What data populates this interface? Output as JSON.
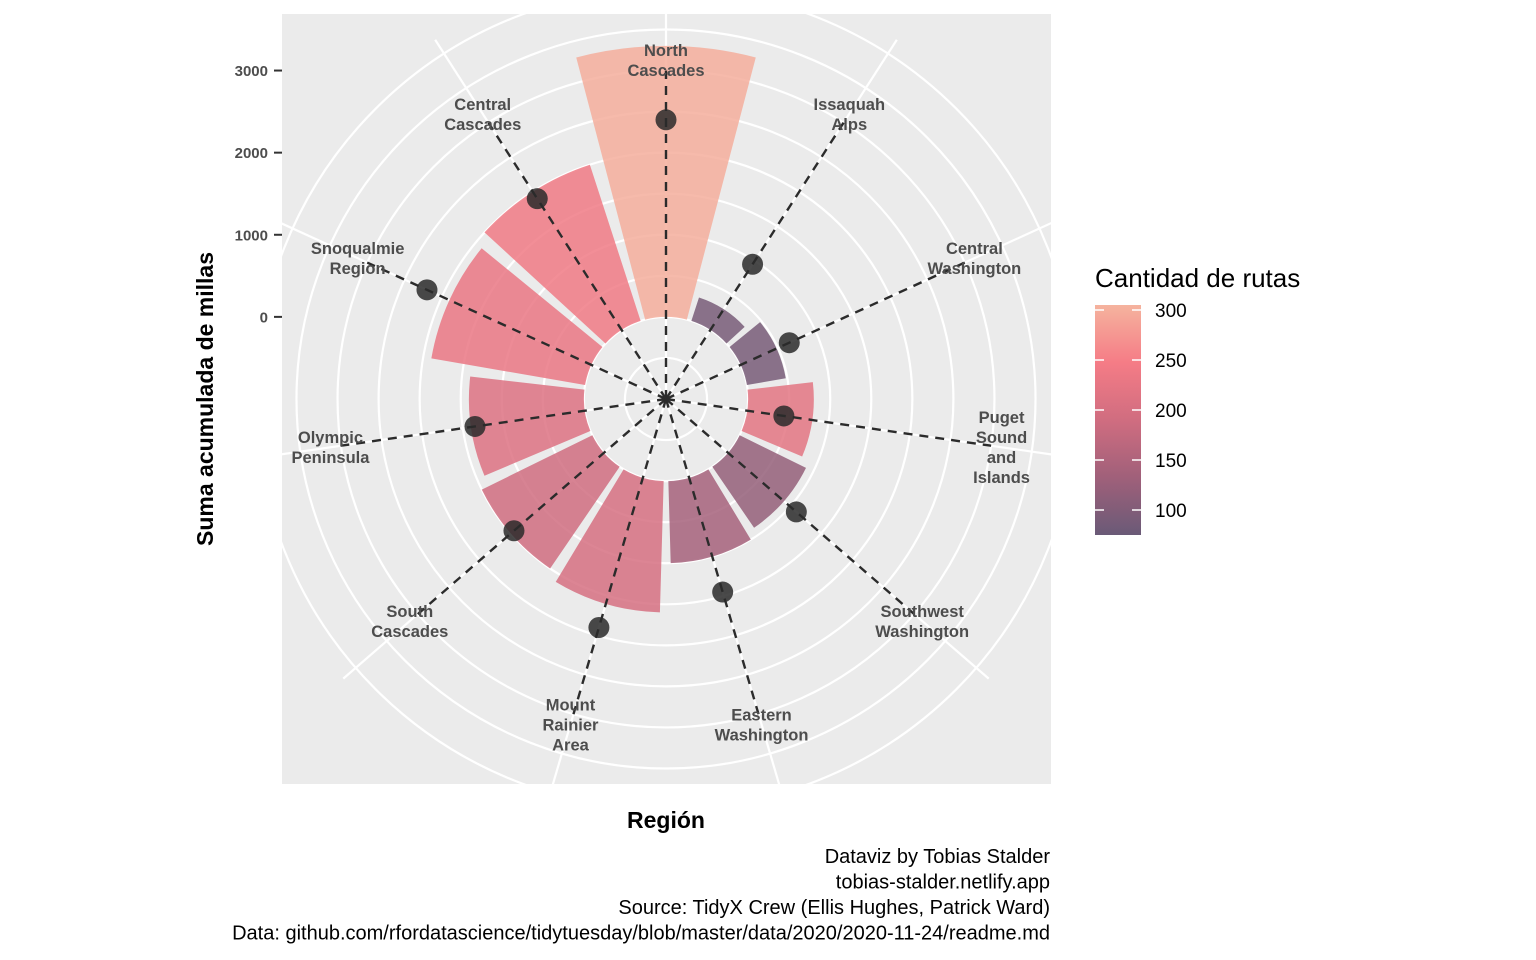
{
  "chart_data": {
    "type": "bar",
    "coord": "polar",
    "xlabel": "Región",
    "ylabel": "Suma acumulada de millas",
    "categories": [
      "North Cascades",
      "Issaquah Alps",
      "Central Washington",
      "Puget Sound and Islands",
      "Southwest Washington",
      "Eastern Washington",
      "Mount Rainier Area",
      "South Cascades",
      "Olympic Peninsula",
      "Snoqualmie Region",
      "Central Cascades"
    ],
    "category_label_lines": [
      [
        "North",
        "Cascades"
      ],
      [
        "Issaquah",
        "Alps"
      ],
      [
        "Central",
        "Washington"
      ],
      [
        "Puget",
        "Sound",
        "and",
        "Islands"
      ],
      [
        "Southwest",
        "Washington"
      ],
      [
        "Eastern",
        "Washington"
      ],
      [
        "Mount",
        "Rainier",
        "Area"
      ],
      [
        "South",
        "Cascades"
      ],
      [
        "Olympic",
        "Peninsula"
      ],
      [
        "Snoqualmie",
        "Region"
      ],
      [
        "Central",
        "Cascades"
      ]
    ],
    "series": [
      {
        "values": [
          3300,
          300,
          480,
          800,
          900,
          1000,
          1600,
          1500,
          1400,
          1900,
          2000
        ]
      }
    ],
    "route_counts": [
      300,
      90,
      90,
      220,
      120,
      140,
      200,
      190,
      210,
      230,
      240
    ],
    "point_values": [
      2400,
      950,
      650,
      450,
      1100,
      1450,
      1900,
      1450,
      1350,
      2200,
      1900
    ],
    "guide_values": [
      3000,
      3000,
      3000,
      3000,
      3000,
      3000,
      3000,
      3000,
      3000,
      3000,
      3000
    ],
    "yticks": [
      0,
      1000,
      2000,
      3000
    ],
    "ytick_labels": [
      "0",
      "1000",
      "2000",
      "3000"
    ],
    "ylim": [
      -1000,
      4200
    ],
    "legend": {
      "title": "Cantidad de rutas",
      "type": "colorbar",
      "range": [
        75,
        305
      ],
      "ticks": [
        100,
        150,
        200,
        250,
        300
      ],
      "tick_labels": [
        "100",
        "150",
        "200",
        "250",
        "300"
      ],
      "colors": [
        "#6a5a77",
        "#a0607a",
        "#d06d80",
        "#f57c86",
        "#f5b39e"
      ],
      "placement": "right"
    },
    "colors": {
      "panel": "#ebebeb",
      "grid": "#ffffff",
      "points": "#2a2a2a",
      "guides": "#2b2b2b"
    },
    "caption": [
      "Dataviz by Tobias Stalder",
      "tobias-stalder.netlify.app",
      "Source: TidyX Crew (Ellis Hughes, Patrick Ward)",
      "Data: github.com/rfordatascience/tidytuesday/blob/master/data/2020/2020-11-24/readme.md"
    ]
  }
}
